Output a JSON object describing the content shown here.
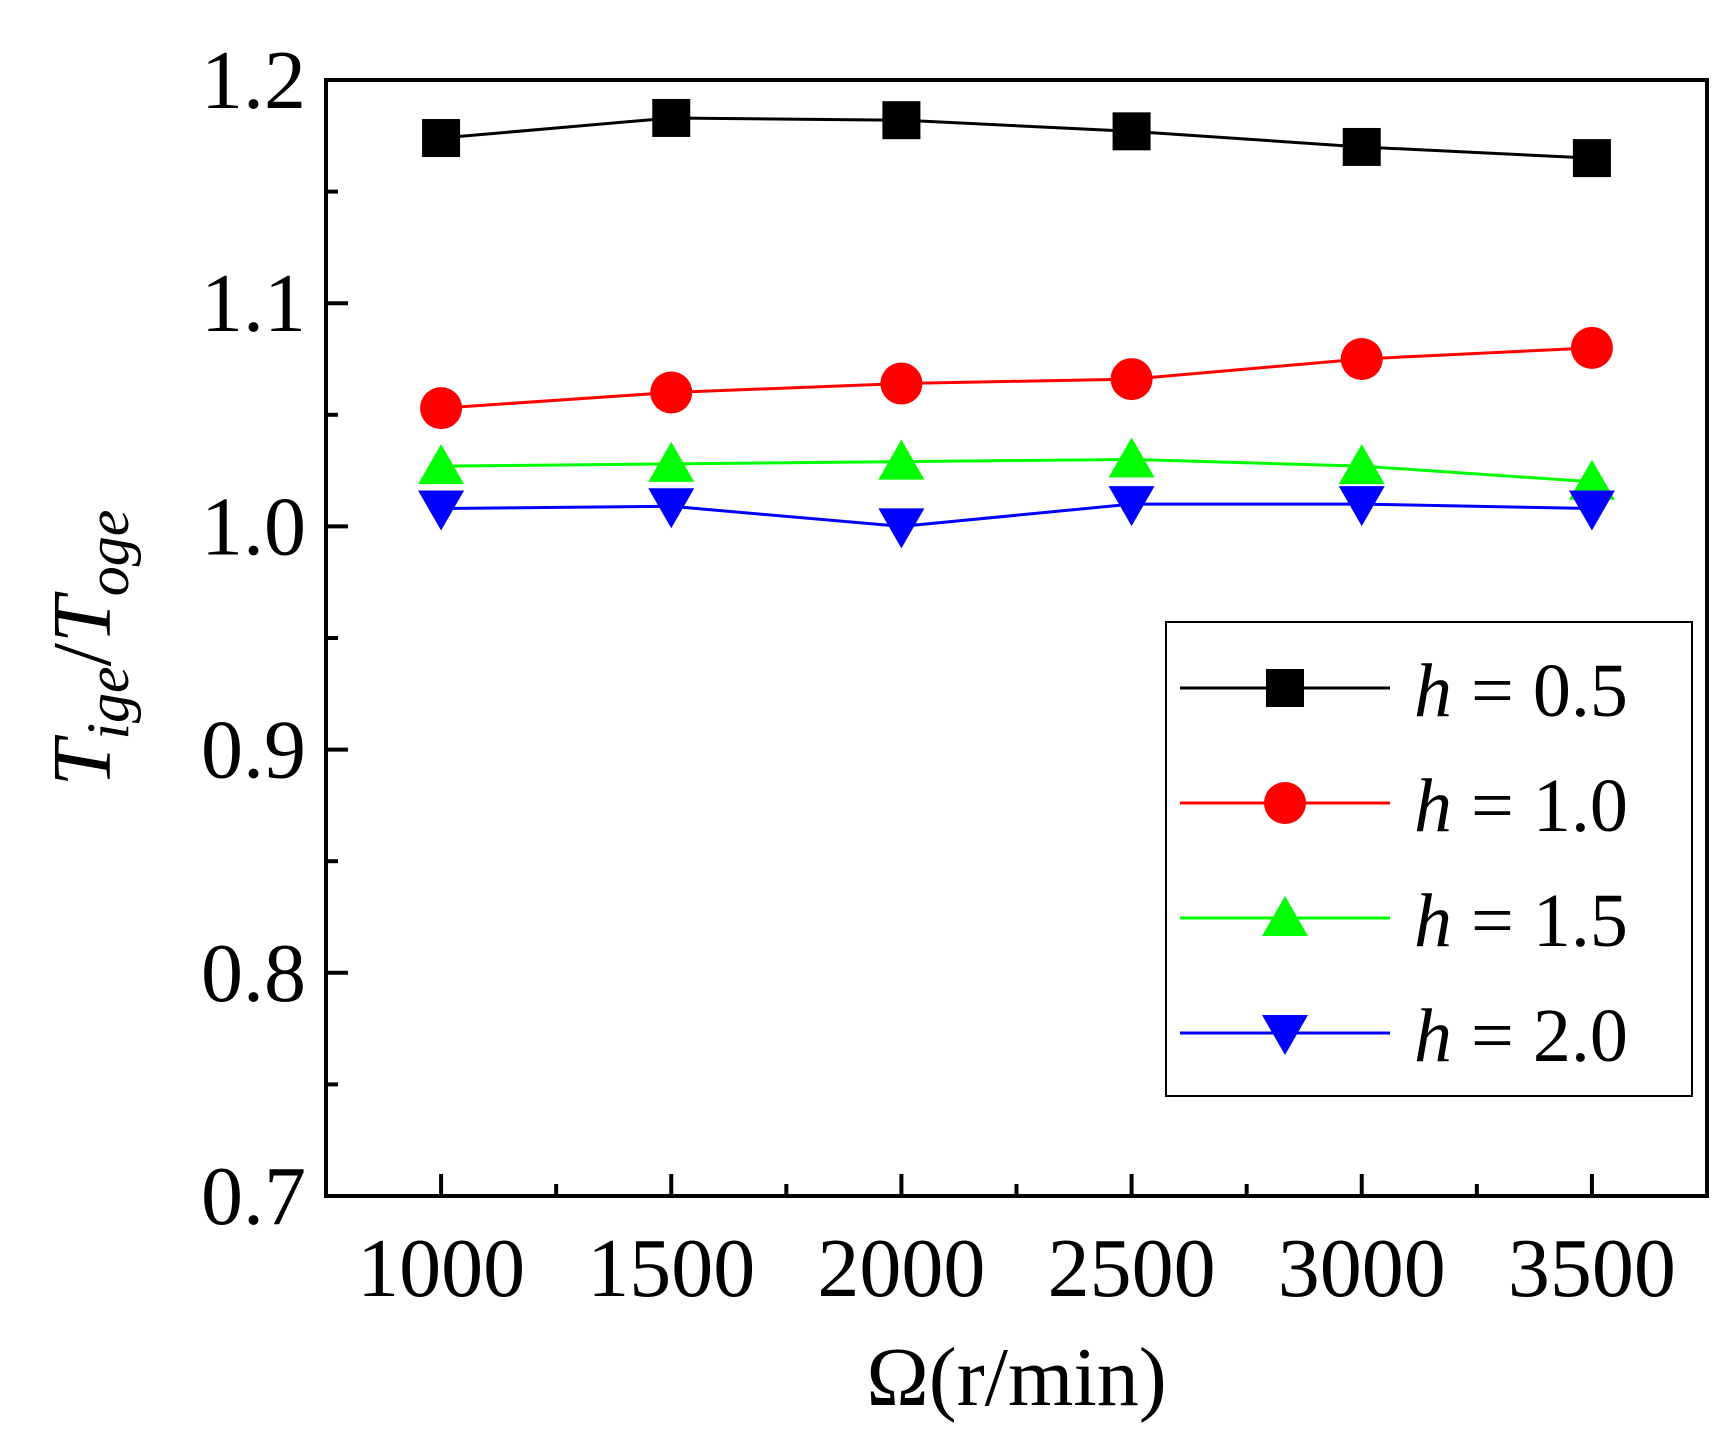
{
  "chart_data": {
    "type": "line",
    "title": "",
    "xlabel": "Ω(r/min)",
    "ylabel": {
      "base1": "T",
      "sub1": "ige",
      "sep": "/",
      "base2": "T",
      "sub2": "oge"
    },
    "x": [
      1000,
      1500,
      2000,
      2500,
      3000,
      3500
    ],
    "xlim": [
      750,
      3750
    ],
    "ylim": [
      0.7,
      1.2
    ],
    "xticks": [
      1000,
      1500,
      2000,
      2500,
      3000,
      3500
    ],
    "xtick_labels": [
      "1000",
      "1500",
      "2000",
      "2500",
      "3000",
      "3500"
    ],
    "xminor_ticks": [
      1250,
      1750,
      2250,
      2750,
      3250
    ],
    "yticks": [
      0.7,
      0.8,
      0.9,
      1.0,
      1.1,
      1.2
    ],
    "ytick_labels": [
      "0.7",
      "0.8",
      "0.9",
      "1.0",
      "1.1",
      "1.2"
    ],
    "yminor_ticks": [
      0.75,
      0.85,
      0.95,
      1.05,
      1.15
    ],
    "grid": false,
    "legend_position": "center-right",
    "series": [
      {
        "name": "h = 0.5",
        "var": "h",
        "rest": " = 0.5",
        "color": "#000000",
        "marker": "square",
        "values": [
          1.174,
          1.183,
          1.182,
          1.177,
          1.17,
          1.165
        ]
      },
      {
        "name": "h = 1.0",
        "var": "h",
        "rest": " = 1.0",
        "color": "#ff0000",
        "marker": "circle",
        "values": [
          1.053,
          1.06,
          1.064,
          1.066,
          1.075,
          1.08
        ]
      },
      {
        "name": "h = 1.5",
        "var": "h",
        "rest": " = 1.5",
        "color": "#00ff00",
        "marker": "triangle-up",
        "values": [
          1.027,
          1.028,
          1.029,
          1.03,
          1.027,
          1.02
        ]
      },
      {
        "name": "h = 2.0",
        "var": "h",
        "rest": " = 2.0",
        "color": "#0000ff",
        "marker": "triangle-down",
        "values": [
          1.008,
          1.009,
          1.0,
          1.01,
          1.01,
          1.008
        ]
      }
    ]
  }
}
